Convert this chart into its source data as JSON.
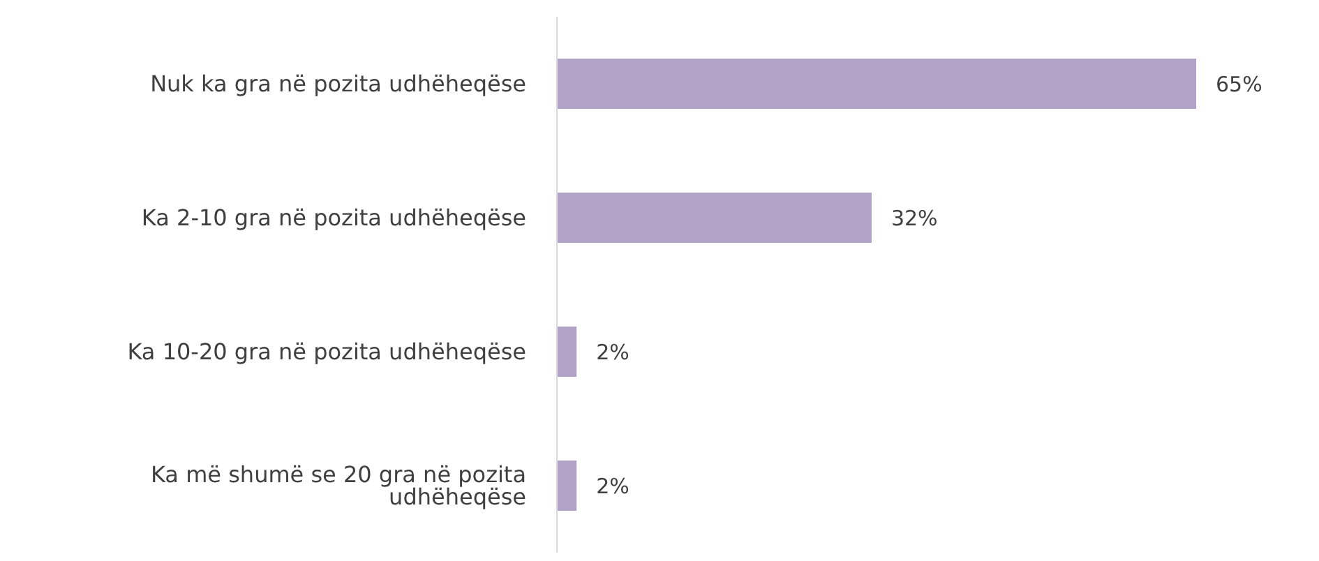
{
  "chart_data": {
    "type": "bar",
    "orientation": "horizontal",
    "categories": [
      "Nuk ka gra në pozita udhëheqëse",
      "Ka 2-10 gra në pozita udhëheqëse",
      "Ka 10-20 gra në pozita udhëheqëse",
      "Ka më shumë se 20 gra në pozita udhëheqëse"
    ],
    "values": [
      65,
      32,
      2,
      2
    ],
    "value_labels": [
      "65%",
      "32%",
      "2%",
      "2%"
    ],
    "color": "#b3a2c7",
    "grid": false
  }
}
